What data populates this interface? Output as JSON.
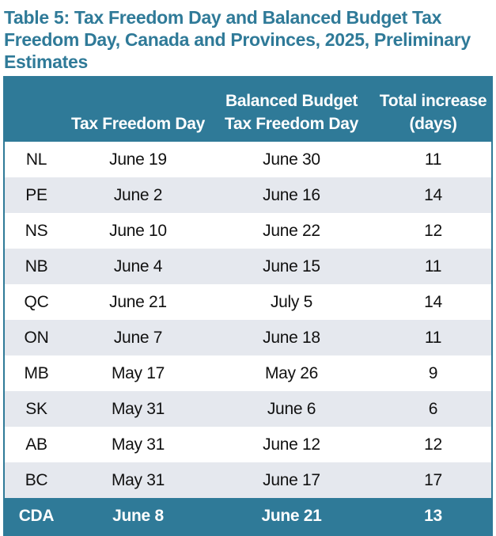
{
  "title": "Table 5: Tax Freedom Day and Balanced Budget Tax Freedom Day, Canada and Provinces, 2025, Preliminary Estimates",
  "headers": {
    "col0": "",
    "col1": "Tax Freedom Day",
    "col2_line1": "Balanced Budget",
    "col2_line2": "Tax Freedom Day",
    "col3_line1": "Total increase",
    "col3_line2": "(days)"
  },
  "rows": [
    {
      "region": "NL",
      "tfd": "June 19",
      "bbtfd": "June 30",
      "increase": "11"
    },
    {
      "region": "PE",
      "tfd": "June 2",
      "bbtfd": "June 16",
      "increase": "14"
    },
    {
      "region": "NS",
      "tfd": "June 10",
      "bbtfd": "June 22",
      "increase": "12"
    },
    {
      "region": "NB",
      "tfd": "June 4",
      "bbtfd": "June 15",
      "increase": "11"
    },
    {
      "region": "QC",
      "tfd": "June 21",
      "bbtfd": "July 5",
      "increase": "14"
    },
    {
      "region": "ON",
      "tfd": "June 7",
      "bbtfd": "June 18",
      "increase": "11"
    },
    {
      "region": "MB",
      "tfd": "May 17",
      "bbtfd": "May 26",
      "increase": "9"
    },
    {
      "region": "SK",
      "tfd": "May 31",
      "bbtfd": "June 6",
      "increase": "6"
    },
    {
      "region": "AB",
      "tfd": "May 31",
      "bbtfd": "June 12",
      "increase": "12"
    },
    {
      "region": "BC",
      "tfd": "May 31",
      "bbtfd": "June 17",
      "increase": "17"
    }
  ],
  "total": {
    "region": "CDA",
    "tfd": "June 8",
    "bbtfd": "June 21",
    "increase": "13"
  },
  "colors": {
    "accent": "#2f7a98",
    "stripe": "#e5e8ee",
    "header_text": "#ffffff",
    "body_text": "#111111"
  }
}
